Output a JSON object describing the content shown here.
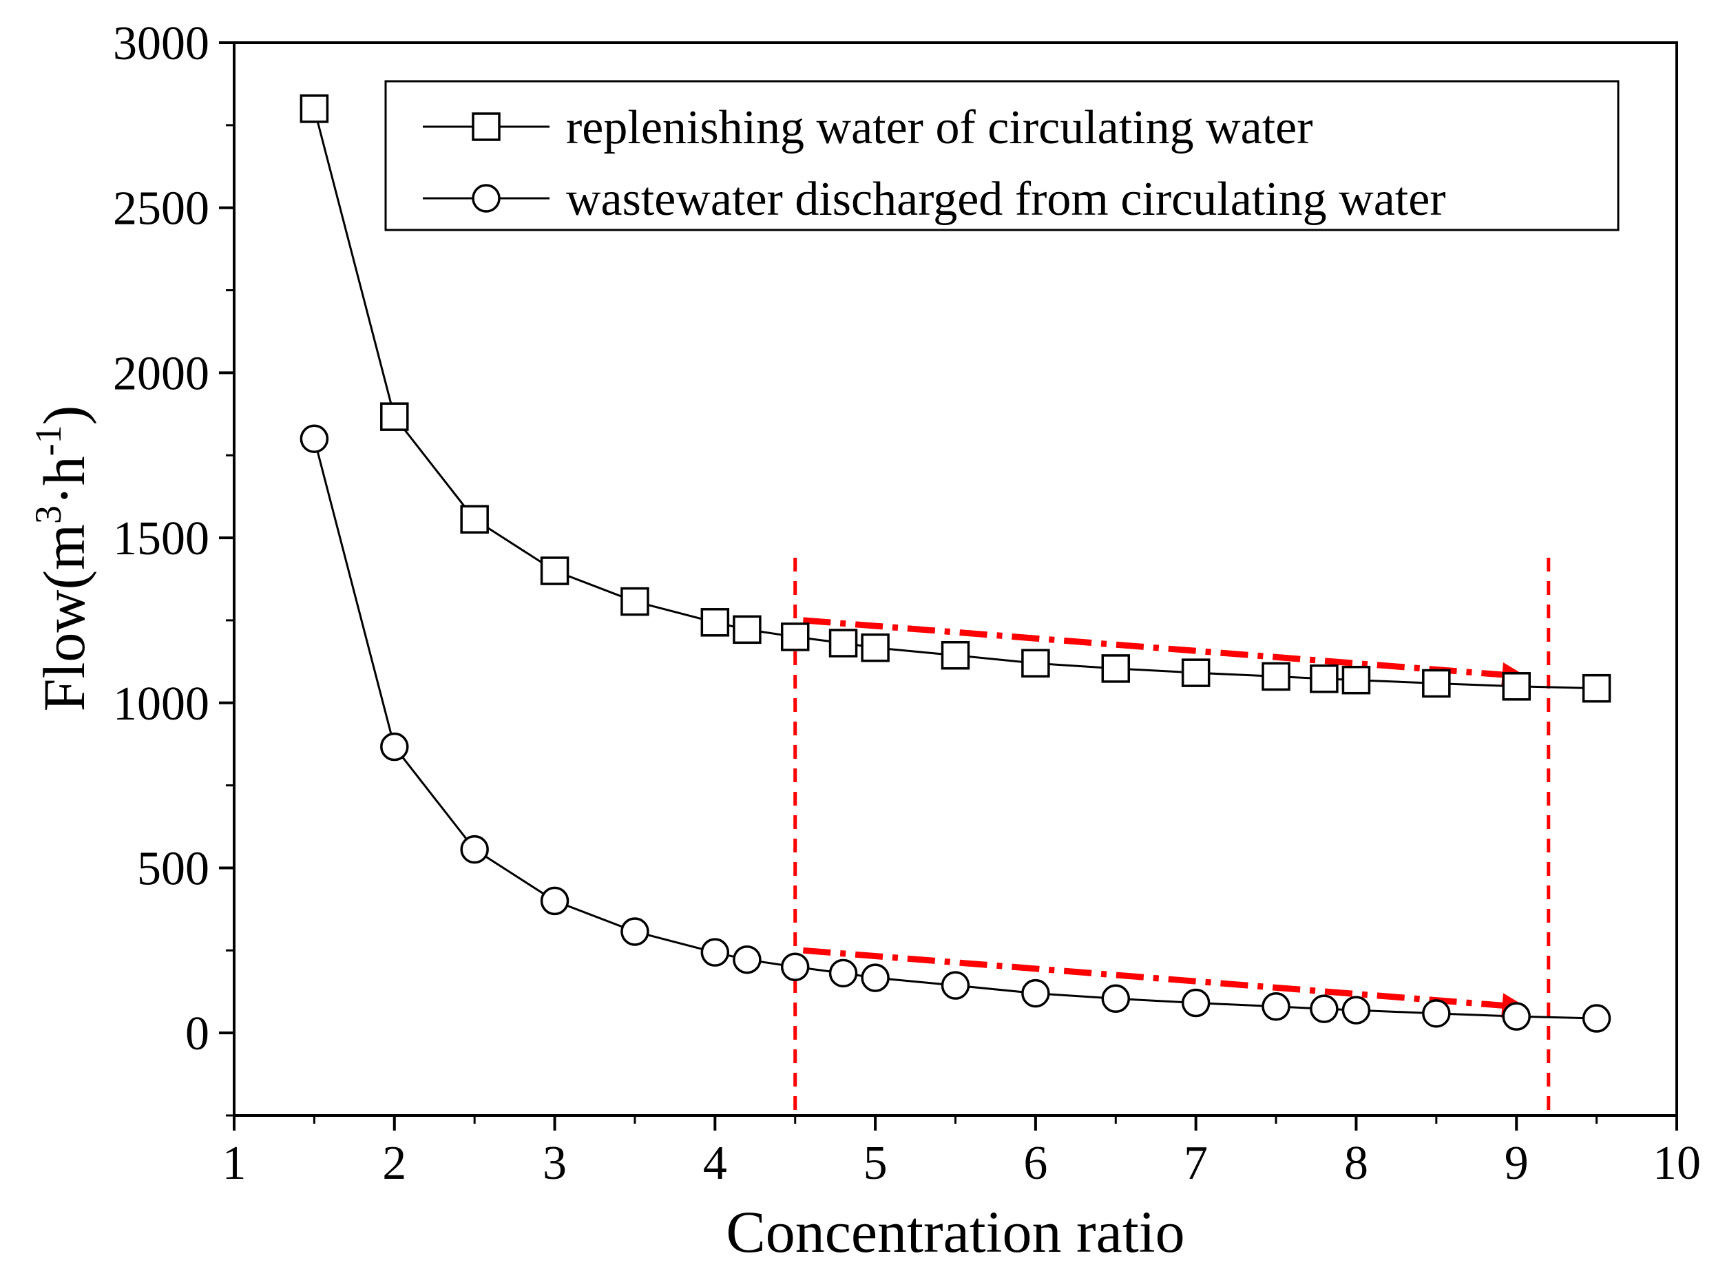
{
  "chart_data": {
    "type": "line",
    "title": "",
    "xlabel": "Concentration ratio",
    "ylabel": {
      "base": "Flow(m",
      "sup1": "3",
      "mid": "·h",
      "sup2": "-1",
      "end": ")"
    },
    "xlim": [
      1,
      10
    ],
    "ylim": [
      -250,
      3000
    ],
    "xticks": [
      1,
      2,
      3,
      4,
      5,
      6,
      7,
      8,
      9,
      10
    ],
    "yticks": [
      0,
      500,
      1000,
      1500,
      2000,
      2500,
      3000
    ],
    "x": [
      1.5,
      2,
      2.5,
      3,
      3.5,
      4,
      4.2,
      4.5,
      4.8,
      5,
      5.5,
      6,
      6.5,
      7,
      7.5,
      7.8,
      8,
      8.5,
      9,
      9.5
    ],
    "series": [
      {
        "name": "replenishing water of circulating water",
        "marker": "square",
        "values": [
          2800,
          1867,
          1556,
          1400,
          1307,
          1244,
          1222,
          1200,
          1181,
          1167,
          1144,
          1120,
          1104,
          1091,
          1080,
          1073,
          1069,
          1059,
          1050,
          1044
        ]
      },
      {
        "name": "wastewater discharged from circulating water",
        "marker": "circle",
        "values": [
          1800,
          867,
          556,
          400,
          307,
          244,
          222,
          200,
          181,
          167,
          144,
          120,
          104,
          91,
          80,
          73,
          69,
          59,
          50,
          44
        ]
      }
    ],
    "annotations": {
      "color": "#ff0000",
      "vlines": [
        4.5,
        9.2
      ],
      "arrows": [
        {
          "from": [
            4.55,
            1250
          ],
          "to": [
            9.05,
            1080
          ]
        },
        {
          "from": [
            4.55,
            250
          ],
          "to": [
            9.05,
            78
          ]
        }
      ]
    },
    "legend_position": "top-right",
    "grid": false
  }
}
